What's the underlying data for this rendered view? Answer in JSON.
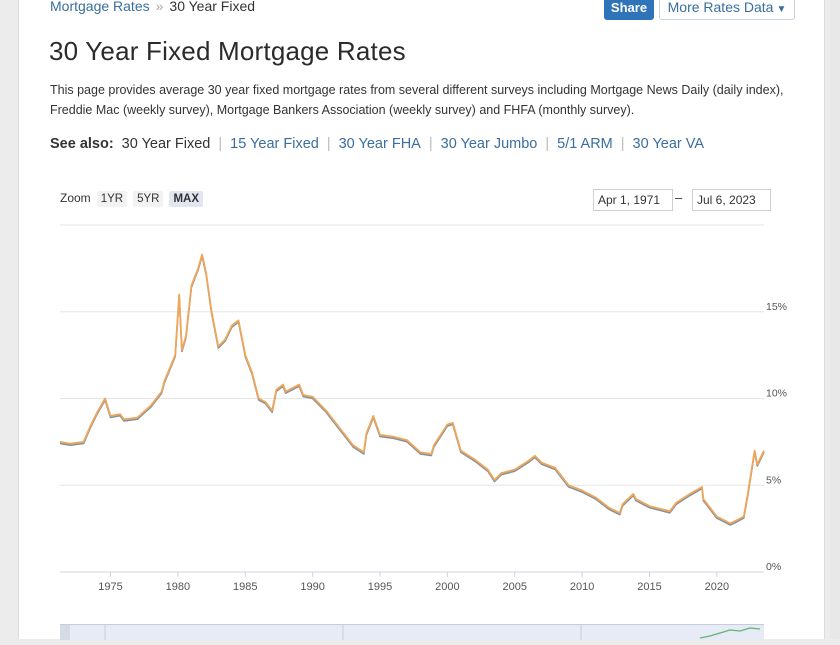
{
  "breadcrumb": {
    "parent": "Mortgage Rates",
    "current": "30 Year Fixed"
  },
  "toolbar": {
    "share_label": "Share",
    "more_label": "More Rates Data"
  },
  "page": {
    "title": "30 Year Fixed Mortgage Rates",
    "intro": "This page provides average 30 year fixed mortgage rates from several different surveys including Mortgage News Daily (daily index), Freddie Mac (weekly survey), Mortgage Bankers Association (weekly survey) and FHFA (monthly survey)."
  },
  "see_also": {
    "label": "See also:",
    "current": "30 Year Fixed",
    "links": [
      "15 Year Fixed",
      "30 Year FHA",
      "30 Year Jumbo",
      "5/1 ARM",
      "30 Year VA"
    ]
  },
  "zoom": {
    "label": "Zoom",
    "buttons": [
      "1YR",
      "5YR",
      "MAX"
    ],
    "active": "MAX"
  },
  "range": {
    "from": "Apr 1, 1971",
    "to": "Jul 6, 2023"
  },
  "colors": {
    "series_main": "#f0a658",
    "series_secondary": "#6b7f8e",
    "nav_series": "#5fb574",
    "link": "#3a6e9e"
  },
  "chart_data": {
    "type": "line",
    "title": "",
    "xlabel": "",
    "ylabel": "",
    "x_ticks": [
      "1975",
      "1980",
      "1985",
      "1990",
      "1995",
      "2000",
      "2005",
      "2010",
      "2015",
      "2020"
    ],
    "y_ticks": [
      "0%",
      "5%",
      "10%",
      "15%"
    ],
    "xlim": [
      1971.25,
      2023.5
    ],
    "ylim": [
      0,
      20
    ],
    "grid": true,
    "series": [
      {
        "x": [
          1971.25,
          1972,
          1973,
          1973.5,
          1974,
          1974.6,
          1975,
          1975.7,
          1976,
          1977,
          1978,
          1978.8,
          1979,
          1979.8,
          1980.1,
          1980.3,
          1980.6,
          1981,
          1981.5,
          1981.8,
          1982.1,
          1982.5,
          1983,
          1983.5,
          1984,
          1984.5,
          1985,
          1985.5,
          1986,
          1986.5,
          1987,
          1987.3,
          1987.8,
          1988,
          1989,
          1989.3,
          1990,
          1991,
          1992,
          1993,
          1993.8,
          1994,
          1994.5,
          1995,
          1996,
          1997,
          1998,
          1998.8,
          1999,
          2000,
          2000.4,
          2001,
          2002,
          2003,
          2003.5,
          2004,
          2005,
          2006,
          2006.5,
          2007,
          2008,
          2009,
          2010,
          2011,
          2012,
          2012.8,
          2013,
          2013.8,
          2014,
          2015,
          2016,
          2016.5,
          2017,
          2018,
          2018.9,
          2019,
          2020,
          2021,
          2021.5,
          2022,
          2022.3,
          2022.8,
          2023,
          2023.5
        ],
        "values": [
          7.5,
          7.4,
          7.5,
          8.4,
          9.2,
          10.0,
          9.0,
          9.1,
          8.8,
          8.9,
          9.6,
          10.4,
          11.0,
          12.5,
          16.0,
          12.8,
          13.6,
          16.5,
          17.5,
          18.3,
          17.2,
          15.0,
          13.0,
          13.4,
          14.2,
          14.5,
          12.5,
          11.5,
          10.0,
          9.8,
          9.3,
          10.5,
          10.8,
          10.4,
          10.8,
          10.2,
          10.1,
          9.3,
          8.3,
          7.3,
          6.9,
          8.0,
          9.0,
          7.9,
          7.8,
          7.6,
          6.9,
          6.8,
          7.3,
          8.5,
          8.6,
          7.0,
          6.5,
          5.9,
          5.3,
          5.7,
          5.9,
          6.4,
          6.7,
          6.3,
          6.0,
          5.0,
          4.7,
          4.3,
          3.7,
          3.4,
          3.9,
          4.5,
          4.2,
          3.8,
          3.6,
          3.5,
          4.0,
          4.5,
          4.9,
          4.2,
          3.2,
          2.8,
          3.0,
          3.2,
          4.5,
          7.0,
          6.2,
          7.0
        ]
      }
    ]
  }
}
